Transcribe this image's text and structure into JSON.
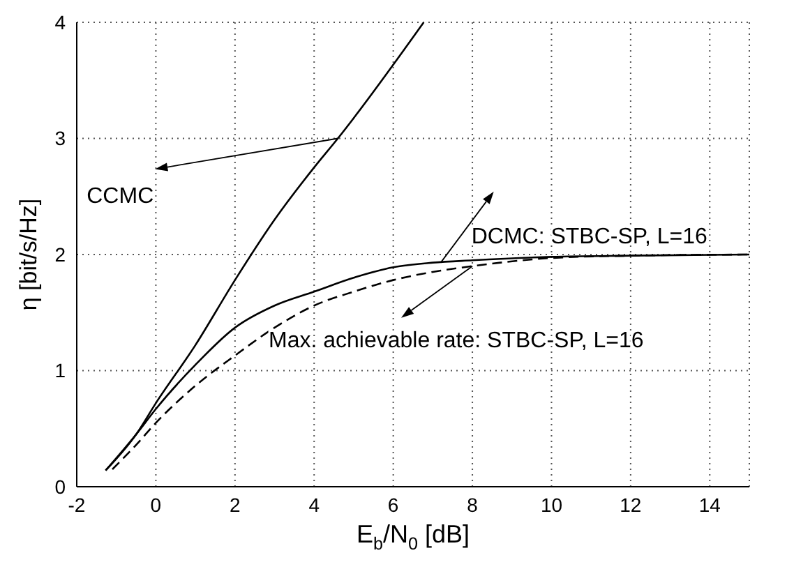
{
  "chart_data": {
    "type": "line",
    "xlabel": "E$_{b}$/N$_{0}$  [dB]",
    "ylabel": "η  [bit/s/Hz]",
    "xlim": [
      -2,
      15
    ],
    "xticks": [
      -2,
      0,
      2,
      4,
      6,
      8,
      10,
      12,
      14
    ],
    "ylim": [
      0,
      4
    ],
    "yticks": [
      0,
      1,
      2,
      3,
      4
    ],
    "grid": true,
    "marker": "none",
    "annotations": [
      {
        "text": "CCMC",
        "x": 4.6,
        "y": 3.0
      },
      {
        "text": "DCMC: STBC-SP, L=16",
        "x": 7.2,
        "y": 1.93
      },
      {
        "text": "Max. achievable rate: STBC-SP, L=16",
        "x": 8,
        "y": 1.9
      }
    ],
    "series": [
      {
        "color": "#000000",
        "line_style": "solid",
        "x": [
          -1.27,
          -0.5,
          0,
          1,
          2,
          3,
          4,
          4.6,
          6.77
        ],
        "values": [
          0.14,
          0.45,
          0.72,
          1.22,
          1.78,
          2.3,
          2.75,
          3.0,
          4.0
        ]
      },
      {
        "color": "#000000",
        "line_style": "solid",
        "x": [
          -1.27,
          -0.5,
          0,
          1,
          2,
          3,
          4,
          5,
          6,
          7,
          8,
          10,
          12,
          15
        ],
        "values": [
          0.14,
          0.45,
          0.67,
          1.05,
          1.37,
          1.56,
          1.68,
          1.8,
          1.89,
          1.93,
          1.95,
          1.98,
          1.99,
          2.0
        ]
      },
      {
        "color": "#000000",
        "line_style": "dashed",
        "x": [
          -1.1,
          -0.5,
          0,
          1,
          2,
          3,
          4,
          5,
          6,
          7,
          8,
          10,
          12,
          15
        ],
        "values": [
          0.15,
          0.36,
          0.55,
          0.87,
          1.13,
          1.37,
          1.56,
          1.68,
          1.78,
          1.85,
          1.9,
          1.97,
          1.99,
          2.0
        ]
      }
    ]
  }
}
